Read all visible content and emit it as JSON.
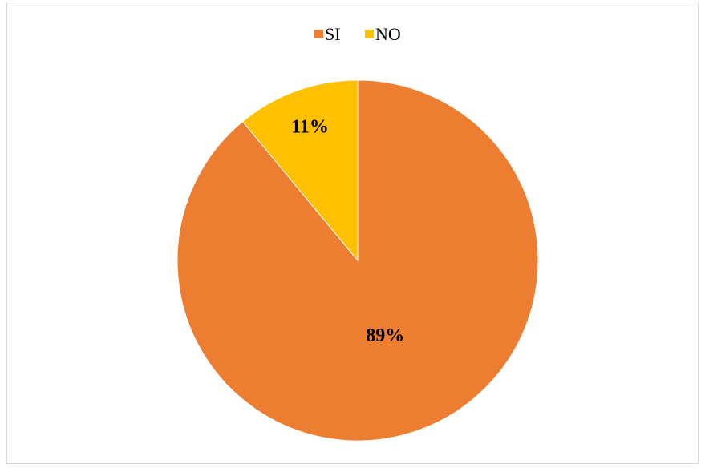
{
  "chart_data": {
    "type": "pie",
    "categories": [
      "SI",
      "NO"
    ],
    "values": [
      89,
      11
    ],
    "value_labels": [
      "89%",
      "11%"
    ],
    "colors": [
      "#ED7D31",
      "#FFC000"
    ],
    "title": "",
    "legend_position": "top",
    "start_angle_deg": 0,
    "direction": "counterclockwise"
  }
}
